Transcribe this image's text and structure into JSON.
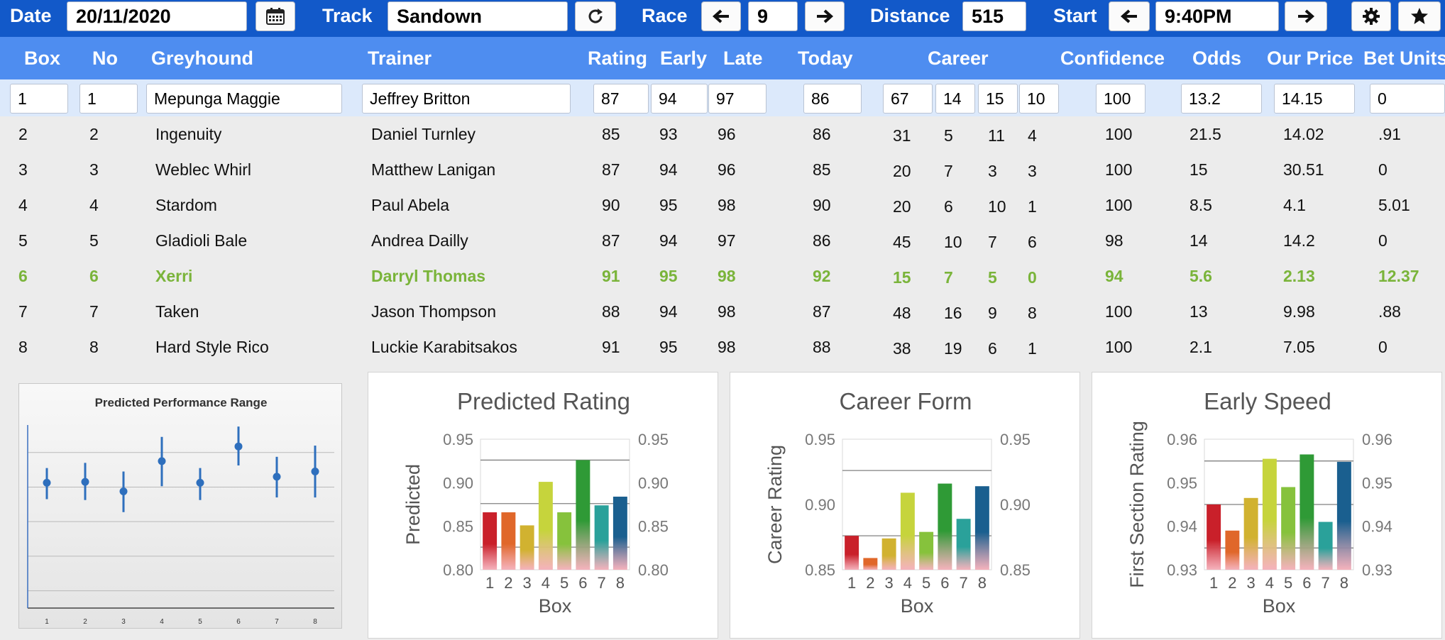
{
  "toolbar": {
    "date_label": "Date",
    "date_value": "20/11/2020",
    "calendar_icon": "calendar-icon",
    "track_label": "Track",
    "track_value": "Sandown",
    "refresh_icon": "refresh-icon",
    "race_label": "Race",
    "race_value": "9",
    "distance_label": "Distance",
    "distance_value": "515",
    "start_label": "Start",
    "start_value": "9:40PM",
    "settings_icon": "gear-icon",
    "favorite_icon": "star-icon"
  },
  "columns": {
    "box": "Box",
    "no": "No",
    "greyhound": "Greyhound",
    "trainer": "Trainer",
    "rating": "Rating",
    "early": "Early",
    "late": "Late",
    "today": "Today",
    "career": "Career",
    "confidence": "Confidence",
    "odds": "Odds",
    "our_price": "Our Price",
    "bet_units": "Bet Units"
  },
  "rows": [
    {
      "box": "1",
      "no": "1",
      "greyhound": "Mepunga Maggie",
      "trainer": "Jeffrey Britton",
      "rating": "87",
      "early": "94",
      "late": "97",
      "today": "86",
      "c1": "67",
      "c2": "14",
      "c3": "15",
      "c4": "10",
      "confidence": "100",
      "odds": "13.2",
      "our_price": "14.15",
      "bet_units": "0"
    },
    {
      "box": "2",
      "no": "2",
      "greyhound": "Ingenuity",
      "trainer": "Daniel Turnley",
      "rating": "85",
      "early": "93",
      "late": "96",
      "today": "86",
      "c1": "31",
      "c2": "5",
      "c3": "11",
      "c4": "4",
      "confidence": "100",
      "odds": "21.5",
      "our_price": "14.02",
      "bet_units": ".91"
    },
    {
      "box": "3",
      "no": "3",
      "greyhound": "Weblec Whirl",
      "trainer": "Matthew Lanigan",
      "rating": "87",
      "early": "94",
      "late": "96",
      "today": "85",
      "c1": "20",
      "c2": "7",
      "c3": "3",
      "c4": "3",
      "confidence": "100",
      "odds": "15",
      "our_price": "30.51",
      "bet_units": "0"
    },
    {
      "box": "4",
      "no": "4",
      "greyhound": "Stardom",
      "trainer": "Paul Abela",
      "rating": "90",
      "early": "95",
      "late": "98",
      "today": "90",
      "c1": "20",
      "c2": "6",
      "c3": "10",
      "c4": "1",
      "confidence": "100",
      "odds": "8.5",
      "our_price": "4.1",
      "bet_units": "5.01"
    },
    {
      "box": "5",
      "no": "5",
      "greyhound": "Gladioli Bale",
      "trainer": "Andrea Dailly",
      "rating": "87",
      "early": "94",
      "late": "97",
      "today": "86",
      "c1": "45",
      "c2": "10",
      "c3": "7",
      "c4": "6",
      "confidence": "98",
      "odds": "14",
      "our_price": "14.2",
      "bet_units": "0"
    },
    {
      "box": "6",
      "no": "6",
      "greyhound": "Xerri",
      "trainer": "Darryl Thomas",
      "rating": "91",
      "early": "95",
      "late": "98",
      "today": "92",
      "c1": "15",
      "c2": "7",
      "c3": "5",
      "c4": "0",
      "confidence": "94",
      "odds": "5.6",
      "our_price": "2.13",
      "bet_units": "12.37"
    },
    {
      "box": "7",
      "no": "7",
      "greyhound": "Taken",
      "trainer": "Jason Thompson",
      "rating": "88",
      "early": "94",
      "late": "98",
      "today": "87",
      "c1": "48",
      "c2": "16",
      "c3": "9",
      "c4": "8",
      "confidence": "100",
      "odds": "13",
      "our_price": "9.98",
      "bet_units": ".88"
    },
    {
      "box": "8",
      "no": "8",
      "greyhound": "Hard Style Rico",
      "trainer": "Luckie Karabitsakos",
      "rating": "91",
      "early": "95",
      "late": "98",
      "today": "88",
      "c1": "38",
      "c2": "19",
      "c3": "6",
      "c4": "1",
      "confidence": "100",
      "odds": "2.1",
      "our_price": "7.05",
      "bet_units": "0"
    }
  ],
  "highlight_color": "#7ab43a",
  "bar_colors": [
    "#c9202a",
    "#e0672a",
    "#d1b230",
    "#c6d43c",
    "#86c23c",
    "#2f9a36",
    "#2aa19a",
    "#1a5f8f"
  ],
  "chart_data": [
    {
      "type": "scatter",
      "title": "Predicted Performance Range",
      "x": [
        1,
        2,
        3,
        4,
        5,
        6,
        7,
        8
      ],
      "y": [
        0.905,
        0.906,
        0.895,
        0.93,
        0.905,
        0.947,
        0.912,
        0.918
      ],
      "error_low": [
        0.886,
        0.885,
        0.871,
        0.901,
        0.885,
        0.925,
        0.888,
        0.888
      ],
      "error_high": [
        0.922,
        0.928,
        0.918,
        0.958,
        0.922,
        0.97,
        0.935,
        0.948
      ],
      "ylim": [
        0.76,
        0.98
      ],
      "x_tick_labels": [
        "1",
        "2",
        "3",
        "4",
        "5",
        "6",
        "7",
        "8"
      ],
      "grid": true
    },
    {
      "type": "bar",
      "title": "Predicted Rating",
      "xlabel": "Box",
      "ylabel": "Predicted",
      "categories": [
        "1",
        "2",
        "3",
        "4",
        "5",
        "6",
        "7",
        "8"
      ],
      "values": [
        0.866,
        0.866,
        0.851,
        0.901,
        0.866,
        0.926,
        0.874,
        0.884
      ],
      "ylim": [
        0.8,
        0.95
      ],
      "y_ticks": [
        "0.80",
        "0.85",
        "0.90",
        "0.95"
      ],
      "reference_lines": [
        0.826,
        0.876,
        0.926
      ]
    },
    {
      "type": "bar",
      "title": "Career Form",
      "xlabel": "Box",
      "ylabel": "Career Rating",
      "categories": [
        "1",
        "2",
        "3",
        "4",
        "5",
        "6",
        "7",
        "8"
      ],
      "values": [
        0.876,
        0.859,
        0.874,
        0.909,
        0.879,
        0.916,
        0.889,
        0.914
      ],
      "ylim": [
        0.85,
        0.95
      ],
      "y_ticks": [
        "0.85",
        "0.90",
        "0.95"
      ],
      "reference_lines": [
        0.876,
        0.926
      ]
    },
    {
      "type": "bar",
      "title": "Early Speed",
      "xlabel": "Box",
      "ylabel": "First Section Rating",
      "categories": [
        "1",
        "2",
        "3",
        "4",
        "5",
        "6",
        "7",
        "8"
      ],
      "values": [
        0.945,
        0.939,
        0.9465,
        0.9555,
        0.949,
        0.9565,
        0.941,
        0.9548
      ],
      "ylim": [
        0.93,
        0.96
      ],
      "y_ticks": [
        "0.93",
        "0.94",
        "0.95",
        "0.96"
      ],
      "reference_lines": [
        0.935,
        0.945,
        0.955
      ]
    }
  ]
}
